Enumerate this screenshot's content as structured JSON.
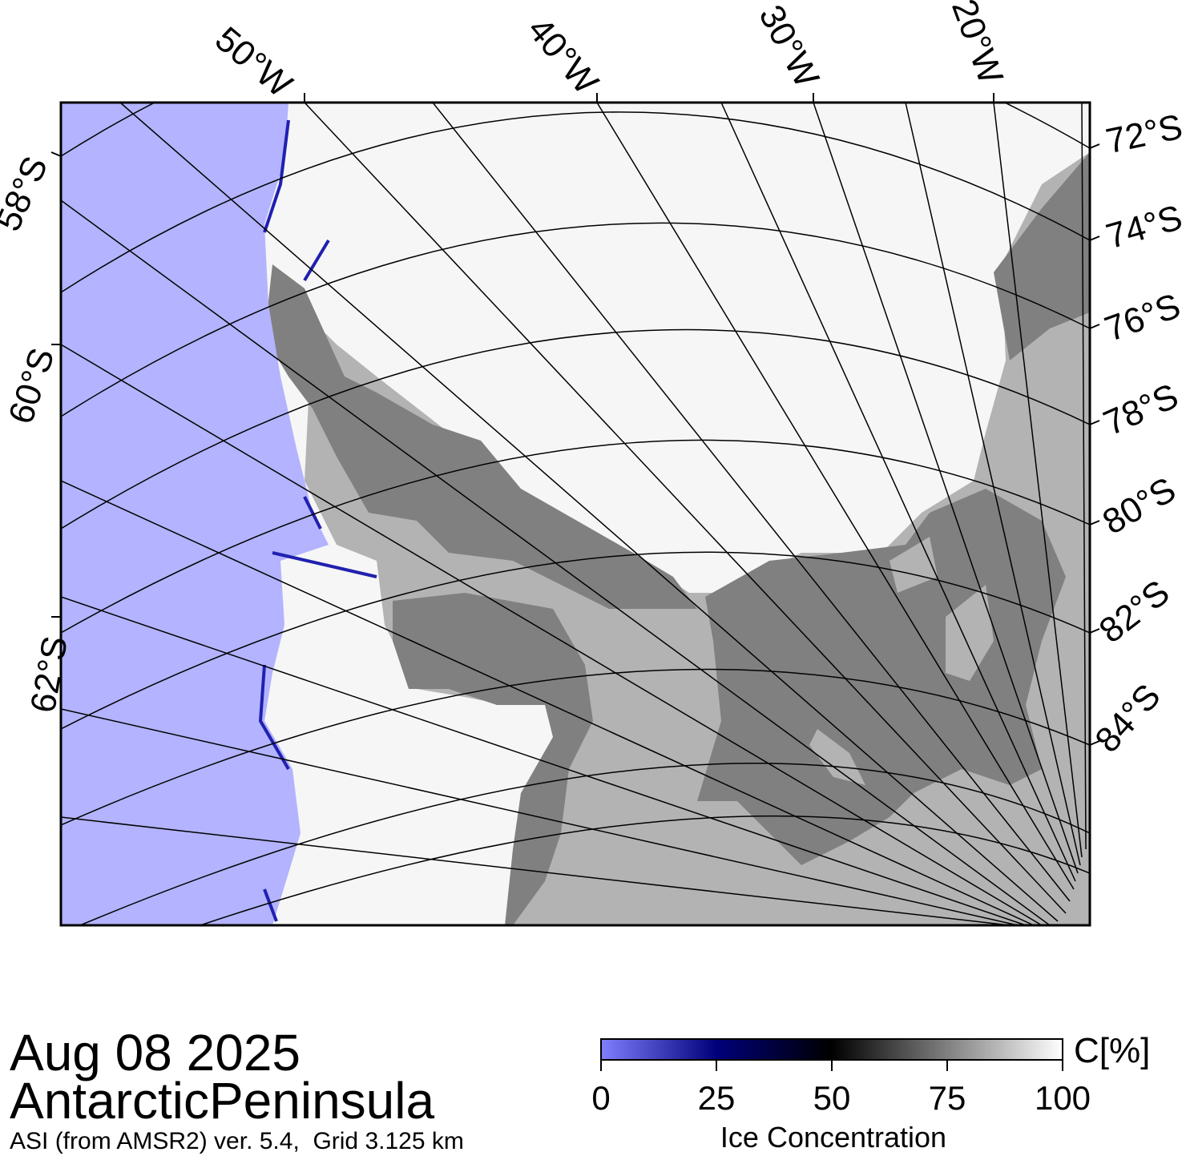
{
  "title": {
    "date": "Aug 08 2025",
    "region": "AntarcticPeninsula",
    "source": "ASI (from AMSR2) ver. 5.4,  Grid 3.125 km"
  },
  "map": {
    "longitude_labels": [
      "50°W",
      "40°W",
      "30°W",
      "20°W"
    ],
    "latitude_labels_right": [
      "72°S",
      "74°S",
      "76°S",
      "78°S",
      "80°S",
      "82°S",
      "84°S"
    ],
    "latitude_labels_left": [
      "58°S",
      "60°S",
      "62°S"
    ],
    "colors": {
      "ocean_open_water": "#b3b3ff",
      "ice_shelf": "#808080",
      "land": "#b3b3b3",
      "sea_ice_full": "#ffffff",
      "graticule": "#000000"
    }
  },
  "colorbar": {
    "unit": "C[%]",
    "label": "Ice Concentration",
    "ticks": [
      "0",
      "25",
      "50",
      "75",
      "100"
    ],
    "stops": [
      "#8080ff",
      "#00007a",
      "#000000",
      "#808080",
      "#ffffff"
    ]
  }
}
